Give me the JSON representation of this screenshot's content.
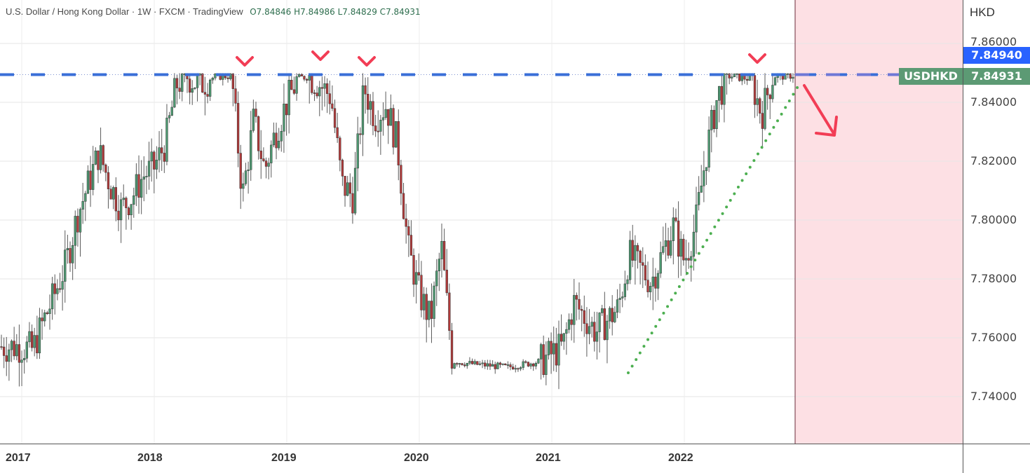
{
  "header": {
    "title": "U.S. Dollar / Hong Kong Dollar · 1W · FXCM · TradingView",
    "ohlc": "O7.84846 H7.84986 L7.84829 C7.84931"
  },
  "price_axis": {
    "currency": "HKD",
    "ticks": [
      "7.86000",
      "7.84000",
      "7.82000",
      "7.80000",
      "7.78000",
      "7.76000",
      "7.74000"
    ],
    "high_tag": "7.84940",
    "last_tag": "7.84931",
    "symbol": "USDHKD"
  },
  "time_axis": {
    "years": [
      "2017",
      "2018",
      "2019",
      "2020",
      "2021",
      "2022"
    ]
  },
  "colors": {
    "up": "#4e9a72",
    "down": "#b23a3a",
    "resistance": "#3a6fd8",
    "trendline": "#4caf50",
    "annotation": "#f23d55",
    "forecast_zone": "#fde0e4",
    "high_tag": "#2962ff",
    "last_tag": "#5c9a74"
  },
  "chart_data": {
    "type": "candlestick",
    "title": "U.S. Dollar / Hong Kong Dollar · 1W · FXCM",
    "xlabel": "",
    "ylabel": "HKD",
    "ylim": [
      7.724,
      7.874
    ],
    "x_ticks": [
      "2017",
      "2018",
      "2019",
      "2020",
      "2021",
      "2022"
    ],
    "y_ticks": [
      7.86,
      7.84,
      7.82,
      7.8,
      7.78,
      7.76,
      7.74
    ],
    "grid": true,
    "last": {
      "open": 7.84846,
      "high": 7.84986,
      "low": 7.84829,
      "close": 7.84931
    },
    "resistance_level": 7.8494,
    "annotations": [
      {
        "type": "horizontal_dashed_line",
        "price": 7.8494,
        "label": "resistance"
      },
      {
        "type": "rejection_marks",
        "count": 4,
        "dates_approx": [
          "2018-09",
          "2019-04",
          "2019-08",
          "2022-08"
        ]
      },
      {
        "type": "dotted_trendline",
        "from": [
          "2021-08",
          7.7475
        ],
        "to": [
          "2022-11",
          7.8475
        ]
      },
      {
        "type": "arrow_down",
        "from": [
          "2022-11",
          7.8475
        ],
        "to": [
          "2023-02",
          7.8285
        ]
      },
      {
        "type": "shaded_forecast_region",
        "start": "2022-11"
      }
    ],
    "weekly_close_path": [
      [
        "2017-01",
        7.757
      ],
      [
        "2017-02",
        7.756
      ],
      [
        "2017-03",
        7.766
      ],
      [
        "2017-04",
        7.775
      ],
      [
        "2017-05",
        7.785
      ],
      [
        "2017-06",
        7.801
      ],
      [
        "2017-07",
        7.812
      ],
      [
        "2017-08",
        7.823
      ],
      [
        "2017-09",
        7.812
      ],
      [
        "2017-10",
        7.804
      ],
      [
        "2017-11",
        7.808
      ],
      [
        "2017-12",
        7.815
      ],
      [
        "2018-01",
        7.818
      ],
      [
        "2018-02",
        7.826
      ],
      [
        "2018-03",
        7.846
      ],
      [
        "2018-04",
        7.849
      ],
      [
        "2018-05",
        7.846
      ],
      [
        "2018-06",
        7.848
      ],
      [
        "2018-07",
        7.849
      ],
      [
        "2018-08",
        7.849
      ],
      [
        "2018-09",
        7.808
      ],
      [
        "2018-10",
        7.834
      ],
      [
        "2018-11",
        7.817
      ],
      [
        "2018-12",
        7.83
      ],
      [
        "2019-01",
        7.84
      ],
      [
        "2019-02",
        7.848
      ],
      [
        "2019-03",
        7.849
      ],
      [
        "2019-04",
        7.846
      ],
      [
        "2019-05",
        7.842
      ],
      [
        "2019-06",
        7.812
      ],
      [
        "2019-07",
        7.808
      ],
      [
        "2019-08",
        7.845
      ],
      [
        "2019-09",
        7.835
      ],
      [
        "2019-10",
        7.839
      ],
      [
        "2019-11",
        7.826
      ],
      [
        "2019-12",
        7.79
      ],
      [
        "2020-01",
        7.775
      ],
      [
        "2020-02",
        7.766
      ],
      [
        "2020-03",
        7.791
      ],
      [
        "2020-04",
        7.752
      ],
      [
        "2020-06",
        7.751
      ],
      [
        "2020-09",
        7.75
      ],
      [
        "2020-12",
        7.752
      ],
      [
        "2021-02",
        7.757
      ],
      [
        "2021-03",
        7.772
      ],
      [
        "2021-05",
        7.762
      ],
      [
        "2021-07",
        7.77
      ],
      [
        "2021-08",
        7.788
      ],
      [
        "2021-10",
        7.779
      ],
      [
        "2021-12",
        7.798
      ],
      [
        "2022-01",
        7.786
      ],
      [
        "2022-02",
        7.798
      ],
      [
        "2022-03",
        7.823
      ],
      [
        "2022-04",
        7.842
      ],
      [
        "2022-05",
        7.849
      ],
      [
        "2022-07",
        7.848
      ],
      [
        "2022-08",
        7.836
      ],
      [
        "2022-09",
        7.849
      ],
      [
        "2022-10",
        7.849
      ],
      [
        "2022-11",
        7.8493
      ]
    ]
  }
}
